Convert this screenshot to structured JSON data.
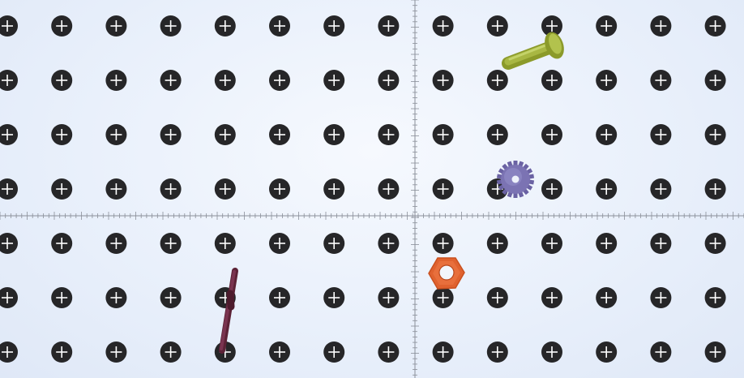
{
  "board": {
    "name": "pegboard",
    "rows": 7,
    "cols": 14,
    "background": "#eaf1fb",
    "hole_color": "#262628",
    "hole_cross_color": "#ffffff"
  },
  "axes": {
    "show_crosshair": true,
    "tick_color": "#8a8f99"
  },
  "pieces": [
    {
      "id": "bolt",
      "name": "bolt-piece",
      "color": "#9aa836"
    },
    {
      "id": "gear",
      "name": "gear-piece",
      "color": "#7c74b4"
    },
    {
      "id": "nut",
      "name": "hex-nut-piece",
      "color": "#e0622f"
    },
    {
      "id": "rod",
      "name": "rod-piece",
      "color": "#6e2c44"
    }
  ]
}
